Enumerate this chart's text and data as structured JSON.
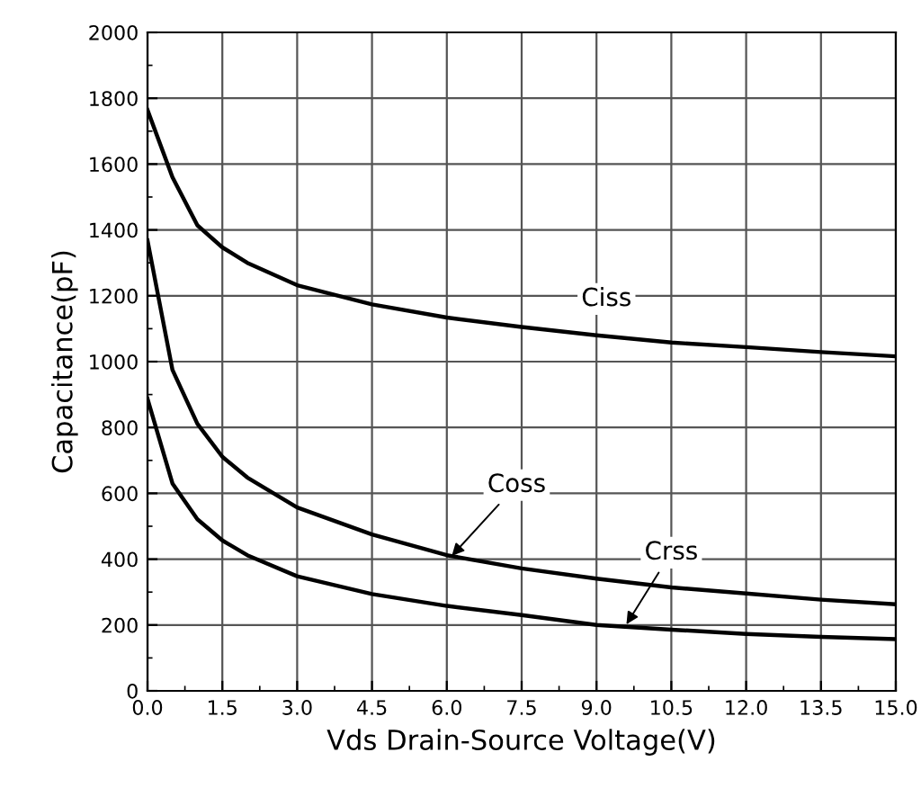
{
  "chart_data": {
    "type": "line",
    "xlabel": "Vds Drain-Source Voltage(V)",
    "ylabel": "Capacitance(pF)",
    "xlim": [
      0,
      15
    ],
    "ylim": [
      0,
      2000
    ],
    "xticks": [
      {
        "value": 0,
        "label": "0.0"
      },
      {
        "value": 1.5,
        "label": "1.5"
      },
      {
        "value": 3,
        "label": "3.0"
      },
      {
        "value": 4.5,
        "label": "4.5"
      },
      {
        "value": 6,
        "label": "6.0"
      },
      {
        "value": 7.5,
        "label": "7.5"
      },
      {
        "value": 9,
        "label": "9.0"
      },
      {
        "value": 10.5,
        "label": "10.5"
      },
      {
        "value": 12,
        "label": "12.0"
      },
      {
        "value": 13.5,
        "label": "13.5"
      },
      {
        "value": 15,
        "label": "15.0"
      }
    ],
    "yticks": [
      0,
      200,
      400,
      600,
      800,
      1000,
      1200,
      1400,
      1600,
      1800,
      2000
    ],
    "grid": true,
    "legend": false,
    "marker": "none",
    "line_style": "solid",
    "x": [
      0,
      0.5,
      1,
      1.5,
      2,
      3,
      4.5,
      6,
      7.5,
      9,
      10.5,
      12,
      13.5,
      15
    ],
    "series": [
      {
        "color": "#000000",
        "values": [
          1764,
          1560,
          1414,
          1347,
          1300,
          1232,
          1174,
          1134,
          1105,
          1080,
          1058,
          1044,
          1029,
          1016
        ]
      },
      {
        "color": "#000000",
        "values": [
          1368,
          975,
          811,
          711,
          648,
          557,
          475,
          412,
          372,
          341,
          314,
          296,
          277,
          263
        ]
      },
      {
        "color": "#000000",
        "values": [
          887,
          630,
          521,
          457,
          412,
          348,
          294,
          258,
          230,
          200,
          186,
          173,
          164,
          157
        ]
      }
    ],
    "annotations": [
      {
        "text": "Ciss",
        "x": 9.2,
        "y": 1190
      },
      {
        "text": "Coss",
        "x": 6.1,
        "y": 410
      },
      {
        "text": "Crss",
        "x": 9.6,
        "y": 202
      }
    ]
  }
}
